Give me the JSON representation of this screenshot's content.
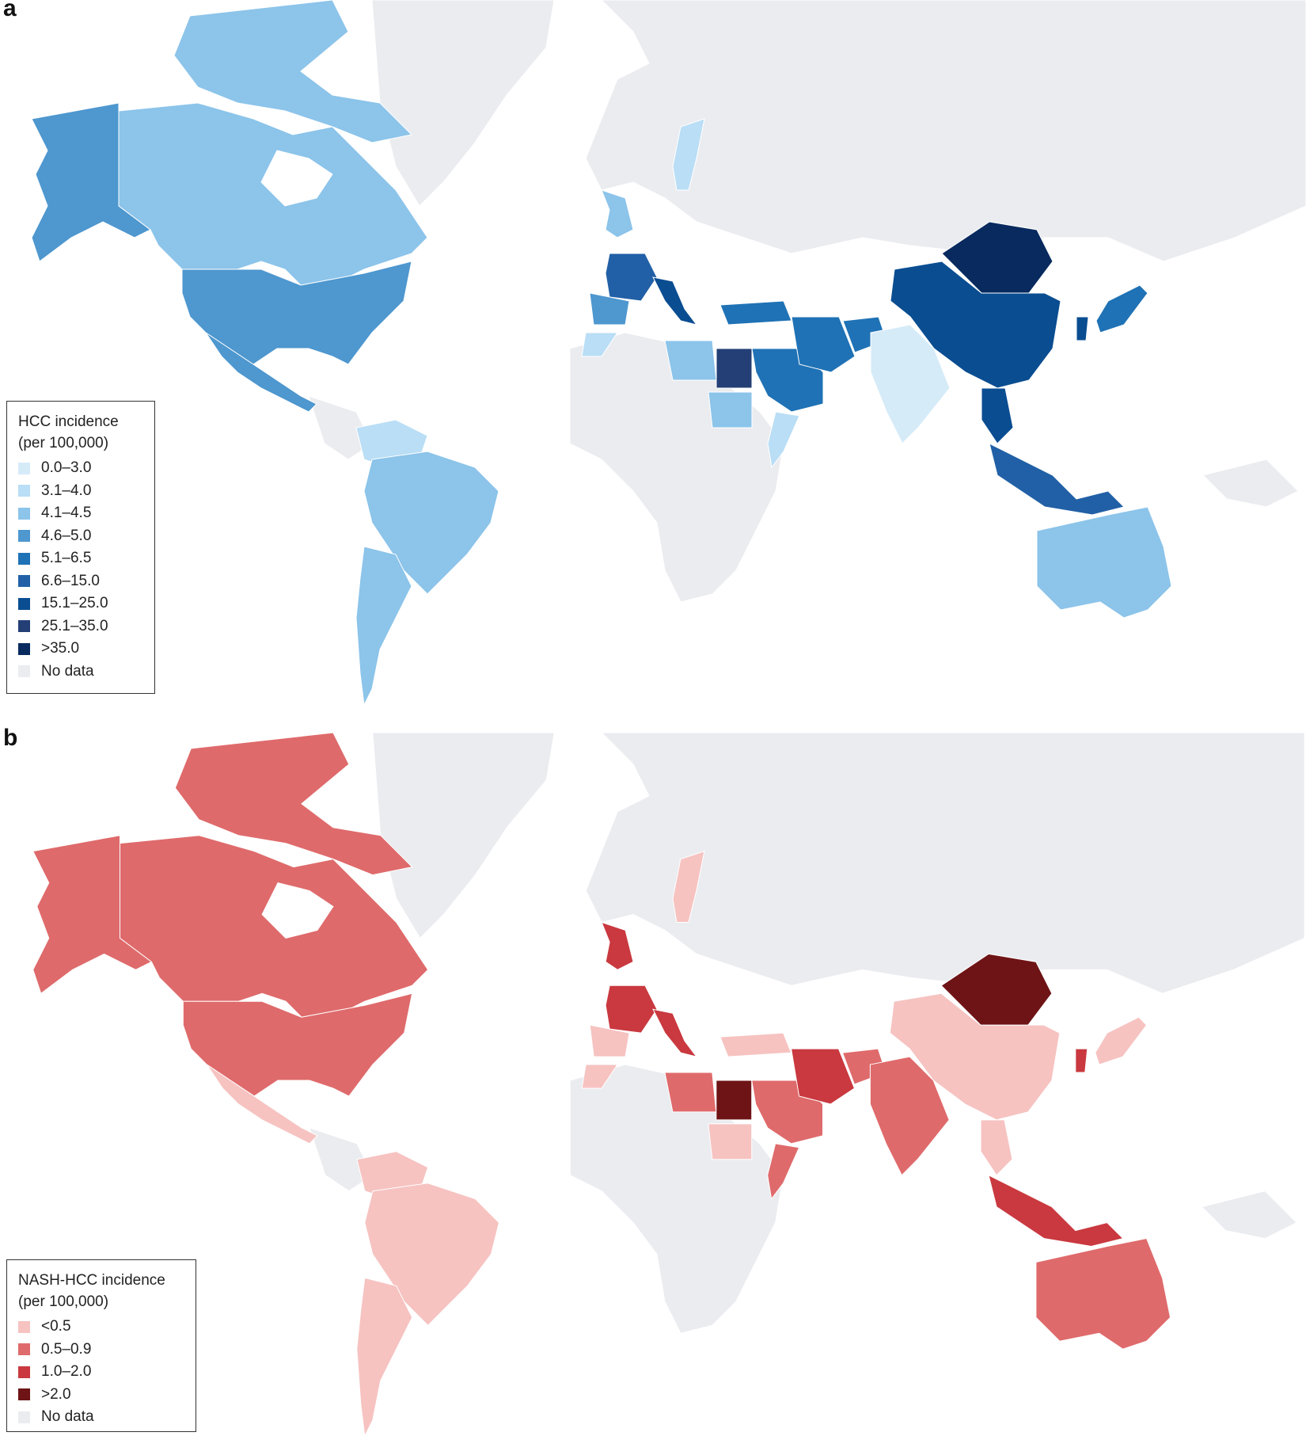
{
  "panel_a": {
    "letter": "a",
    "legend_title_line1": "HCC incidence",
    "legend_title_line2": "(per 100,000)",
    "legend": [
      {
        "label": "0.0–3.0",
        "color": "#d6ebf8"
      },
      {
        "label": "3.1–4.0",
        "color": "#b9def5"
      },
      {
        "label": "4.1–4.5",
        "color": "#8cc4ea"
      },
      {
        "label": "4.6–5.0",
        "color": "#4e97cf"
      },
      {
        "label": "5.1–6.5",
        "color": "#1f72b5"
      },
      {
        "label": "6.6–15.0",
        "color": "#2160a6"
      },
      {
        "label": "15.1–25.0",
        "color": "#0a4d91"
      },
      {
        "label": "25.1–35.0",
        "color": "#233f76"
      },
      {
        "label": ">35.0",
        "color": "#082a5e"
      },
      {
        "label": "No data",
        "color": "#ebecf0"
      }
    ],
    "regions": [
      {
        "name": "alaska",
        "class": "4.6–5.0"
      },
      {
        "name": "canada",
        "class": "4.1–4.5"
      },
      {
        "name": "canadian-arctic",
        "class": "4.1–4.5"
      },
      {
        "name": "united-states",
        "class": "4.6–5.0"
      },
      {
        "name": "mexico",
        "class": "4.6–5.0"
      },
      {
        "name": "colombia-venezuela",
        "class": "3.1–4.0"
      },
      {
        "name": "brazil",
        "class": "4.1–4.5"
      },
      {
        "name": "chile-argentina",
        "class": "4.1–4.5"
      },
      {
        "name": "sweden",
        "class": "3.1–4.0"
      },
      {
        "name": "united-kingdom",
        "class": "4.1–4.5"
      },
      {
        "name": "france",
        "class": "6.6–15.0"
      },
      {
        "name": "italy",
        "class": "15.1–25.0"
      },
      {
        "name": "iberia",
        "class": "4.6–5.0"
      },
      {
        "name": "morocco",
        "class": "3.1–4.0"
      },
      {
        "name": "libya",
        "class": "4.1–4.5"
      },
      {
        "name": "egypt",
        "class": "25.1–35.0"
      },
      {
        "name": "sudan",
        "class": "4.1–4.5"
      },
      {
        "name": "turkey",
        "class": "5.1–6.5"
      },
      {
        "name": "saudi-arabia",
        "class": "5.1–6.5"
      },
      {
        "name": "iran",
        "class": "5.1–6.5"
      },
      {
        "name": "afghanistan",
        "class": "5.1–6.5"
      },
      {
        "name": "pakistan-india",
        "class": "0.0–3.0"
      },
      {
        "name": "somalia",
        "class": "3.1–4.0"
      },
      {
        "name": "china",
        "class": "15.1–25.0"
      },
      {
        "name": "mongolia",
        "class": ">35.0"
      },
      {
        "name": "korea",
        "class": "15.1–25.0"
      },
      {
        "name": "japan",
        "class": "5.1–6.5"
      },
      {
        "name": "thailand",
        "class": "15.1–25.0"
      },
      {
        "name": "indonesia",
        "class": "6.6–15.0"
      },
      {
        "name": "australia",
        "class": "4.1–4.5"
      }
    ]
  },
  "panel_b": {
    "letter": "b",
    "legend_title_line1": "NASH-HCC incidence",
    "legend_title_line2": "(per 100,000)",
    "legend": [
      {
        "label": "<0.5",
        "color": "#f6c3c1"
      },
      {
        "label": "0.5–0.9",
        "color": "#df6a6b"
      },
      {
        "label": "1.0–2.0",
        "color": "#c9393f"
      },
      {
        "label": ">2.0",
        "color": "#6e1416"
      },
      {
        "label": "No data",
        "color": "#ebecf0"
      }
    ],
    "regions": [
      {
        "name": "alaska",
        "class": "0.5–0.9"
      },
      {
        "name": "canada",
        "class": "0.5–0.9"
      },
      {
        "name": "canadian-arctic",
        "class": "0.5–0.9"
      },
      {
        "name": "united-states",
        "class": "0.5–0.9"
      },
      {
        "name": "mexico",
        "class": "<0.5"
      },
      {
        "name": "colombia-venezuela",
        "class": "<0.5"
      },
      {
        "name": "brazil",
        "class": "<0.5"
      },
      {
        "name": "chile-argentina",
        "class": "<0.5"
      },
      {
        "name": "sweden",
        "class": "<0.5"
      },
      {
        "name": "united-kingdom",
        "class": "1.0–2.0"
      },
      {
        "name": "france",
        "class": "1.0–2.0"
      },
      {
        "name": "italy",
        "class": "1.0–2.0"
      },
      {
        "name": "iberia",
        "class": "<0.5"
      },
      {
        "name": "morocco",
        "class": "<0.5"
      },
      {
        "name": "libya",
        "class": "0.5–0.9"
      },
      {
        "name": "egypt",
        "class": ">2.0"
      },
      {
        "name": "sudan",
        "class": "<0.5"
      },
      {
        "name": "turkey",
        "class": "<0.5"
      },
      {
        "name": "saudi-arabia",
        "class": "0.5–0.9"
      },
      {
        "name": "iran",
        "class": "1.0–2.0"
      },
      {
        "name": "afghanistan",
        "class": "0.5–0.9"
      },
      {
        "name": "pakistan-india",
        "class": "0.5–0.9"
      },
      {
        "name": "somalia",
        "class": "0.5–0.9"
      },
      {
        "name": "china",
        "class": "<0.5"
      },
      {
        "name": "mongolia",
        "class": ">2.0"
      },
      {
        "name": "korea",
        "class": "1.0–2.0"
      },
      {
        "name": "japan",
        "class": "<0.5"
      },
      {
        "name": "thailand",
        "class": "<0.5"
      },
      {
        "name": "indonesia",
        "class": "1.0–2.0"
      },
      {
        "name": "australia",
        "class": "0.5–0.9"
      }
    ]
  }
}
